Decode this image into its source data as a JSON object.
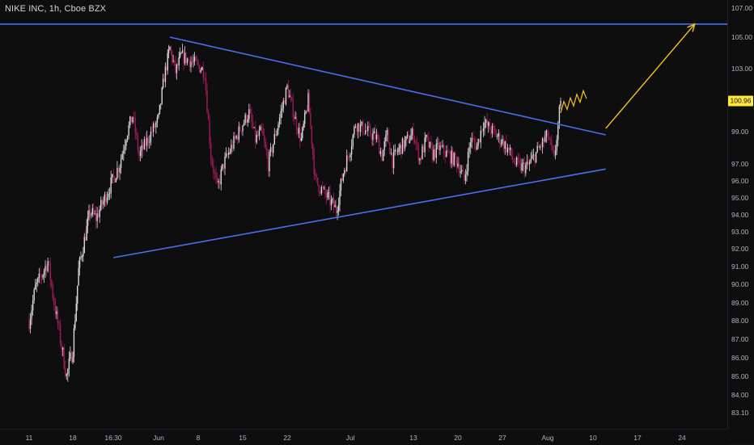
{
  "symbol_title": "NIKE INC, 1h, Cboe BZX",
  "last_price_label": "100.96",
  "colors": {
    "background": "#0e0e0e",
    "up_candle": "#d8d8d8",
    "down_candle": "#9e1b5a",
    "trendline": "#4a6ff0",
    "projection": "#f5c518",
    "last_price_tag": "#fde83b"
  },
  "chart_data": {
    "type": "candlestick",
    "title": "NIKE INC, 1h, Cboe BZX",
    "y_ticks": [
      107.0,
      105.0,
      103.0,
      99.0,
      97.0,
      96.0,
      95.0,
      94.0,
      93.0,
      92.0,
      91.0,
      90.0,
      89.0,
      88.0,
      87.0,
      86.0,
      85.0,
      84.0,
      83.1
    ],
    "y_tick_labels": [
      "107.00",
      "105.00",
      "103.00",
      "99.00",
      "97.00",
      "96.00",
      "95.00",
      "94.00",
      "93.00",
      "92.00",
      "91.00",
      "90.00",
      "89.00",
      "88.00",
      "87.00",
      "86.00",
      "85.00",
      "84.00",
      "83.10"
    ],
    "x_tick_labels": [
      "11",
      "18",
      "16:30",
      "Jun",
      "8",
      "15",
      "22",
      "Jul",
      "13",
      "20",
      "27",
      "Aug",
      "10",
      "17",
      "24"
    ],
    "last_price": 100.96,
    "close_path": [
      {
        "x": "May 11",
        "y": 88.0
      },
      {
        "x": "May 12",
        "y": 89.8
      },
      {
        "x": "May 13",
        "y": 90.5
      },
      {
        "x": "May 14",
        "y": 91.3
      },
      {
        "x": "May 15",
        "y": 89.0
      },
      {
        "x": "May 16",
        "y": 87.0
      },
      {
        "x": "May 17",
        "y": 85.0
      },
      {
        "x": "May 18",
        "y": 86.5
      },
      {
        "x": "May 19",
        "y": 90.8
      },
      {
        "x": "May 20",
        "y": 92.5
      },
      {
        "x": "May 21",
        "y": 94.2
      },
      {
        "x": "May 22",
        "y": 93.8
      },
      {
        "x": "May 26",
        "y": 97.0
      },
      {
        "x": "May 27",
        "y": 98.8
      },
      {
        "x": "May 28",
        "y": 100.0
      },
      {
        "x": "May 29",
        "y": 97.5
      },
      {
        "x": "Jun 1",
        "y": 99.8
      },
      {
        "x": "Jun 2",
        "y": 102.5
      },
      {
        "x": "Jun 3",
        "y": 104.3
      },
      {
        "x": "Jun 4",
        "y": 102.8
      },
      {
        "x": "Jun 5",
        "y": 103.8
      },
      {
        "x": "Jun 8",
        "y": 103.2
      },
      {
        "x": "Jun 9",
        "y": 102.8
      },
      {
        "x": "Jun 10",
        "y": 97.5
      },
      {
        "x": "Jun 11",
        "y": 95.5
      },
      {
        "x": "Jun 12",
        "y": 97.0
      },
      {
        "x": "Jun 15",
        "y": 99.5
      },
      {
        "x": "Jun 16",
        "y": 100.2
      },
      {
        "x": "Jun 17",
        "y": 98.5
      },
      {
        "x": "Jun 18",
        "y": 99.0
      },
      {
        "x": "Jun 19",
        "y": 97.0
      },
      {
        "x": "Jun 22",
        "y": 101.8
      },
      {
        "x": "Jun 23",
        "y": 100.0
      },
      {
        "x": "Jun 24",
        "y": 98.5
      },
      {
        "x": "Jun 25",
        "y": 101.0
      },
      {
        "x": "Jun 26",
        "y": 96.0
      },
      {
        "x": "Jun 29",
        "y": 94.3
      },
      {
        "x": "Jun 30",
        "y": 96.5
      },
      {
        "x": "Jul 1",
        "y": 98.0
      },
      {
        "x": "Jul 2",
        "y": 99.5
      },
      {
        "x": "Jul 6",
        "y": 98.6
      },
      {
        "x": "Jul 7",
        "y": 97.5
      },
      {
        "x": "Jul 8",
        "y": 98.8
      },
      {
        "x": "Jul 9",
        "y": 97.2
      },
      {
        "x": "Jul 10",
        "y": 97.8
      },
      {
        "x": "Jul 13",
        "y": 98.9
      },
      {
        "x": "Jul 14",
        "y": 97.3
      },
      {
        "x": "Jul 15",
        "y": 98.5
      },
      {
        "x": "Jul 16",
        "y": 97.6
      },
      {
        "x": "Jul 17",
        "y": 98.0
      },
      {
        "x": "Jul 20",
        "y": 97.1
      },
      {
        "x": "Jul 21",
        "y": 96.0
      },
      {
        "x": "Jul 22",
        "y": 98.5
      },
      {
        "x": "Jul 23",
        "y": 98.1
      },
      {
        "x": "Jul 24",
        "y": 99.6
      },
      {
        "x": "Jul 27",
        "y": 98.4
      },
      {
        "x": "Jul 28",
        "y": 97.8
      },
      {
        "x": "Jul 29",
        "y": 97.0
      },
      {
        "x": "Jul 30",
        "y": 96.8
      },
      {
        "x": "Jul 31",
        "y": 96.9
      },
      {
        "x": "Aug 3",
        "y": 98.8
      },
      {
        "x": "Aug 4",
        "y": 97.2
      },
      {
        "x": "Aug 5",
        "y": 100.96
      }
    ],
    "annotations": [
      {
        "type": "horizontal_line",
        "label": "resistance",
        "y": 105.9
      },
      {
        "type": "trendline",
        "label": "upper triangle",
        "from": {
          "x": "Jun 3",
          "y": 105.0
        },
        "to": {
          "x": "Aug 12",
          "y": 98.8
        }
      },
      {
        "type": "trendline",
        "label": "lower triangle",
        "from": {
          "x": "May 25",
          "y": 91.5
        },
        "to": {
          "x": "Aug 12",
          "y": 96.7
        }
      },
      {
        "type": "projection_zigzag",
        "label": "consolidation",
        "from": {
          "x": "Aug 5",
          "y": 100.5
        },
        "to": {
          "x": "Aug 9",
          "y": 101.4
        }
      },
      {
        "type": "projection_arrow",
        "label": "target",
        "from": {
          "x": "Aug 12",
          "y": 99.2
        },
        "to": {
          "x": "Aug 26",
          "y": 105.9
        }
      }
    ],
    "grid": false,
    "legend": "none"
  }
}
